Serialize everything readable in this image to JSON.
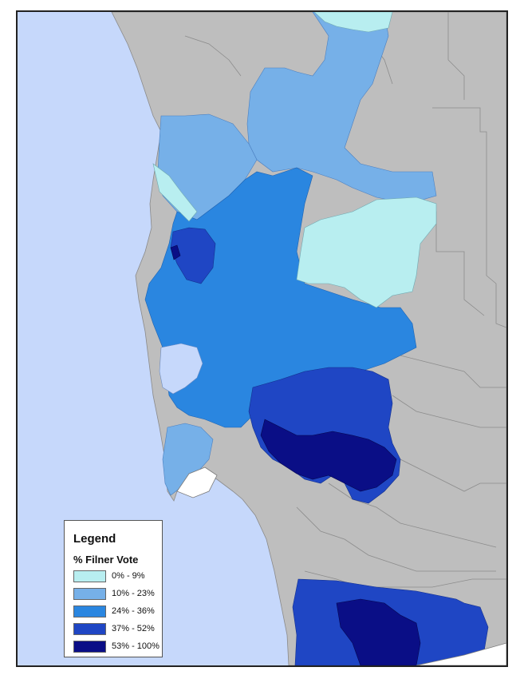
{
  "legend": {
    "title": "Legend",
    "subtitle": "% Filner Vote",
    "classes": [
      {
        "label": "0% - 9%",
        "color": "#b8eef0"
      },
      {
        "label": "10% - 23%",
        "color": "#76b0e8"
      },
      {
        "label": "24% - 36%",
        "color": "#2a86e0"
      },
      {
        "label": "37% - 52%",
        "color": "#1f46c4"
      },
      {
        "label": "53% - 100%",
        "color": "#0a0e86"
      }
    ]
  },
  "colors": {
    "ocean": "#c6d8fb",
    "land": "#bebebe",
    "boundary": "#7a7a7a",
    "frame": "#222222"
  }
}
